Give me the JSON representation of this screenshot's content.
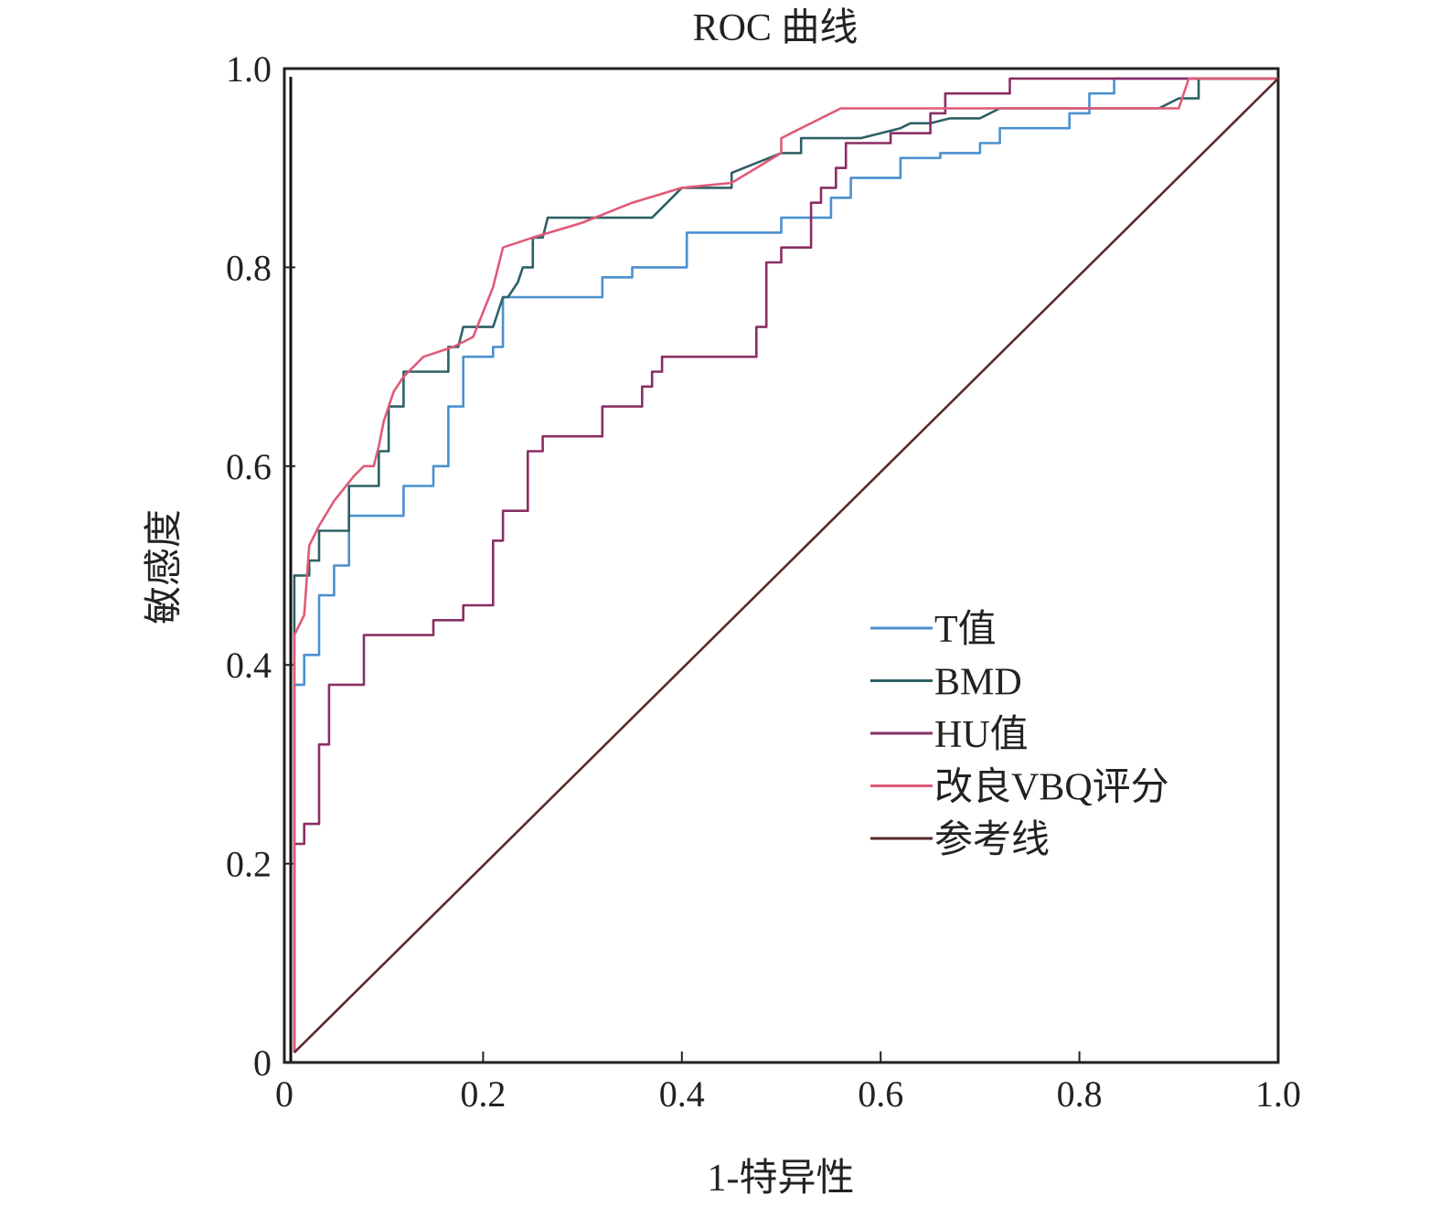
{
  "chart_data": {
    "type": "line",
    "title": "ROC 曲线",
    "xlabel": "1-特异性",
    "ylabel": "敏感度",
    "xlim": [
      0,
      1
    ],
    "ylim": [
      0,
      1
    ],
    "xticks": [
      0,
      0.2,
      0.4,
      0.6,
      0.8,
      1.0
    ],
    "xtick_labels": [
      "0",
      "0.2",
      "0.4",
      "0.6",
      "0.8",
      "1.0"
    ],
    "yticks": [
      0,
      0.2,
      0.4,
      0.6,
      0.8,
      1.0
    ],
    "ytick_labels": [
      "0",
      "0.2",
      "0.4",
      "0.6",
      "0.8",
      "1.0"
    ],
    "grid": false,
    "legend_position": "center-right",
    "series": [
      {
        "name": "T值",
        "color": "#4a90d0",
        "points": [
          [
            0.01,
            0.01
          ],
          [
            0.01,
            0.38
          ],
          [
            0.02,
            0.38
          ],
          [
            0.02,
            0.41
          ],
          [
            0.035,
            0.41
          ],
          [
            0.035,
            0.47
          ],
          [
            0.05,
            0.47
          ],
          [
            0.05,
            0.5
          ],
          [
            0.065,
            0.5
          ],
          [
            0.065,
            0.55
          ],
          [
            0.12,
            0.55
          ],
          [
            0.12,
            0.58
          ],
          [
            0.15,
            0.58
          ],
          [
            0.15,
            0.6
          ],
          [
            0.165,
            0.6
          ],
          [
            0.165,
            0.66
          ],
          [
            0.18,
            0.66
          ],
          [
            0.18,
            0.71
          ],
          [
            0.21,
            0.71
          ],
          [
            0.21,
            0.72
          ],
          [
            0.22,
            0.72
          ],
          [
            0.22,
            0.77
          ],
          [
            0.32,
            0.77
          ],
          [
            0.32,
            0.79
          ],
          [
            0.35,
            0.79
          ],
          [
            0.35,
            0.8
          ],
          [
            0.405,
            0.8
          ],
          [
            0.405,
            0.835
          ],
          [
            0.5,
            0.835
          ],
          [
            0.5,
            0.85
          ],
          [
            0.55,
            0.85
          ],
          [
            0.55,
            0.87
          ],
          [
            0.57,
            0.87
          ],
          [
            0.57,
            0.89
          ],
          [
            0.62,
            0.89
          ],
          [
            0.62,
            0.91
          ],
          [
            0.66,
            0.91
          ],
          [
            0.66,
            0.915
          ],
          [
            0.7,
            0.915
          ],
          [
            0.7,
            0.925
          ],
          [
            0.72,
            0.925
          ],
          [
            0.72,
            0.94
          ],
          [
            0.79,
            0.94
          ],
          [
            0.79,
            0.955
          ],
          [
            0.81,
            0.955
          ],
          [
            0.81,
            0.975
          ],
          [
            0.835,
            0.975
          ],
          [
            0.835,
            0.99
          ],
          [
            1.0,
            0.99
          ]
        ]
      },
      {
        "name": "BMD",
        "color": "#2e6066",
        "points": [
          [
            0.01,
            0.01
          ],
          [
            0.01,
            0.49
          ],
          [
            0.025,
            0.49
          ],
          [
            0.025,
            0.505
          ],
          [
            0.035,
            0.505
          ],
          [
            0.035,
            0.535
          ],
          [
            0.065,
            0.535
          ],
          [
            0.065,
            0.58
          ],
          [
            0.095,
            0.58
          ],
          [
            0.095,
            0.615
          ],
          [
            0.105,
            0.615
          ],
          [
            0.105,
            0.66
          ],
          [
            0.12,
            0.66
          ],
          [
            0.12,
            0.695
          ],
          [
            0.165,
            0.695
          ],
          [
            0.165,
            0.72
          ],
          [
            0.175,
            0.72
          ],
          [
            0.18,
            0.74
          ],
          [
            0.21,
            0.74
          ],
          [
            0.22,
            0.77
          ],
          [
            0.225,
            0.77
          ],
          [
            0.235,
            0.785
          ],
          [
            0.24,
            0.8
          ],
          [
            0.25,
            0.8
          ],
          [
            0.25,
            0.83
          ],
          [
            0.26,
            0.83
          ],
          [
            0.265,
            0.85
          ],
          [
            0.37,
            0.85
          ],
          [
            0.38,
            0.86
          ],
          [
            0.4,
            0.88
          ],
          [
            0.45,
            0.88
          ],
          [
            0.45,
            0.895
          ],
          [
            0.5,
            0.915
          ],
          [
            0.52,
            0.915
          ],
          [
            0.52,
            0.93
          ],
          [
            0.58,
            0.93
          ],
          [
            0.62,
            0.94
          ],
          [
            0.63,
            0.945
          ],
          [
            0.65,
            0.945
          ],
          [
            0.67,
            0.95
          ],
          [
            0.7,
            0.95
          ],
          [
            0.72,
            0.96
          ],
          [
            0.88,
            0.96
          ],
          [
            0.9,
            0.97
          ],
          [
            0.92,
            0.97
          ],
          [
            0.92,
            0.99
          ],
          [
            1.0,
            0.99
          ]
        ]
      },
      {
        "name": "HU值",
        "color": "#8a2e64",
        "points": [
          [
            0.01,
            0.01
          ],
          [
            0.01,
            0.22
          ],
          [
            0.02,
            0.22
          ],
          [
            0.02,
            0.24
          ],
          [
            0.035,
            0.24
          ],
          [
            0.035,
            0.32
          ],
          [
            0.045,
            0.32
          ],
          [
            0.045,
            0.38
          ],
          [
            0.08,
            0.38
          ],
          [
            0.08,
            0.43
          ],
          [
            0.15,
            0.43
          ],
          [
            0.15,
            0.445
          ],
          [
            0.18,
            0.445
          ],
          [
            0.18,
            0.46
          ],
          [
            0.21,
            0.46
          ],
          [
            0.21,
            0.525
          ],
          [
            0.22,
            0.525
          ],
          [
            0.22,
            0.555
          ],
          [
            0.245,
            0.555
          ],
          [
            0.245,
            0.615
          ],
          [
            0.26,
            0.615
          ],
          [
            0.26,
            0.63
          ],
          [
            0.32,
            0.63
          ],
          [
            0.32,
            0.66
          ],
          [
            0.36,
            0.66
          ],
          [
            0.36,
            0.68
          ],
          [
            0.37,
            0.68
          ],
          [
            0.37,
            0.695
          ],
          [
            0.38,
            0.695
          ],
          [
            0.38,
            0.71
          ],
          [
            0.475,
            0.71
          ],
          [
            0.475,
            0.74
          ],
          [
            0.485,
            0.74
          ],
          [
            0.485,
            0.805
          ],
          [
            0.5,
            0.805
          ],
          [
            0.5,
            0.82
          ],
          [
            0.53,
            0.82
          ],
          [
            0.53,
            0.865
          ],
          [
            0.54,
            0.865
          ],
          [
            0.54,
            0.88
          ],
          [
            0.555,
            0.88
          ],
          [
            0.555,
            0.9
          ],
          [
            0.565,
            0.9
          ],
          [
            0.565,
            0.925
          ],
          [
            0.61,
            0.925
          ],
          [
            0.61,
            0.935
          ],
          [
            0.65,
            0.935
          ],
          [
            0.65,
            0.955
          ],
          [
            0.665,
            0.955
          ],
          [
            0.665,
            0.975
          ],
          [
            0.73,
            0.975
          ],
          [
            0.73,
            0.99
          ],
          [
            1.0,
            0.99
          ]
        ]
      },
      {
        "name": "改良VBQ评分",
        "color": "#e05a78",
        "points": [
          [
            0.01,
            0.01
          ],
          [
            0.01,
            0.43
          ],
          [
            0.02,
            0.45
          ],
          [
            0.025,
            0.52
          ],
          [
            0.035,
            0.54
          ],
          [
            0.05,
            0.565
          ],
          [
            0.07,
            0.59
          ],
          [
            0.08,
            0.6
          ],
          [
            0.09,
            0.6
          ],
          [
            0.095,
            0.62
          ],
          [
            0.1,
            0.645
          ],
          [
            0.11,
            0.675
          ],
          [
            0.12,
            0.69
          ],
          [
            0.14,
            0.71
          ],
          [
            0.17,
            0.72
          ],
          [
            0.19,
            0.73
          ],
          [
            0.21,
            0.78
          ],
          [
            0.22,
            0.82
          ],
          [
            0.25,
            0.83
          ],
          [
            0.3,
            0.845
          ],
          [
            0.35,
            0.865
          ],
          [
            0.4,
            0.88
          ],
          [
            0.45,
            0.885
          ],
          [
            0.5,
            0.915
          ],
          [
            0.5,
            0.93
          ],
          [
            0.52,
            0.94
          ],
          [
            0.56,
            0.96
          ],
          [
            0.6,
            0.96
          ],
          [
            0.65,
            0.96
          ],
          [
            0.9,
            0.96
          ],
          [
            0.91,
            0.99
          ],
          [
            1.0,
            0.99
          ]
        ]
      },
      {
        "name": "参考线",
        "color": "#5a2a2a",
        "points": [
          [
            0.01,
            0.01
          ],
          [
            1.0,
            0.99
          ]
        ]
      }
    ]
  }
}
